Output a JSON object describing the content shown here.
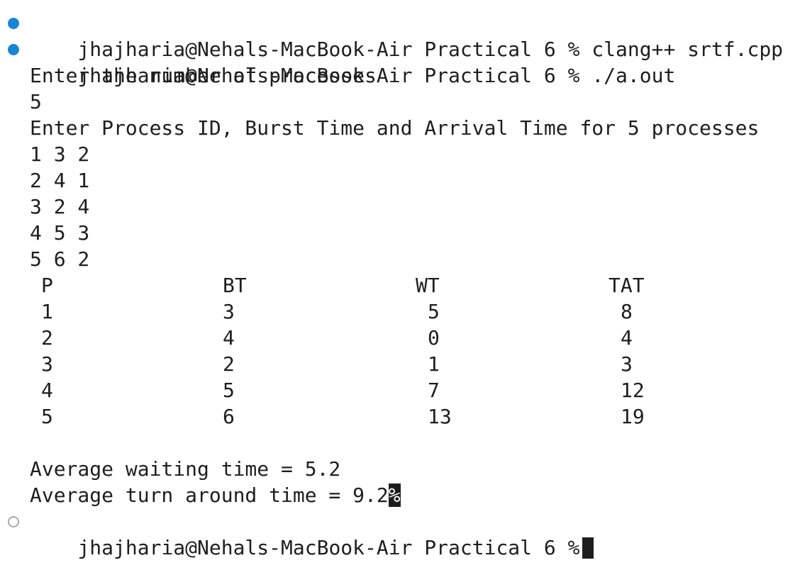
{
  "commands": [
    {
      "prompt": "jhajharia@Nehals-MacBook-Air Practical 6 %",
      "command": "clang++ srtf.cpp",
      "status": "success"
    },
    {
      "prompt": "jhajharia@Nehals-MacBook-Air Practical 6 %",
      "command": "./a.out",
      "status": "success"
    }
  ],
  "output": {
    "ask_count": "Enter the number of processes",
    "count": "5",
    "ask_details": "Enter Process ID, Burst Time and Arrival Time for 5 processes",
    "inputs": [
      "1 3 2",
      "2 4 1",
      "3 2 4",
      "4 5 3",
      "5 6 2"
    ],
    "table": {
      "headers": [
        "P",
        "BT",
        "WT",
        "TAT"
      ],
      "rows": [
        [
          "1",
          "3",
          "5",
          "8"
        ],
        [
          "2",
          "4",
          "0",
          "4"
        ],
        [
          "3",
          "2",
          "1",
          "3"
        ],
        [
          "4",
          "5",
          "7",
          "12"
        ],
        [
          "5",
          "6",
          "13",
          "19"
        ]
      ]
    },
    "avg_waiting": "Average waiting time = 5.2",
    "avg_turnaround": "Average turn around time = 9.2",
    "no_newline_marker": "%"
  },
  "current_prompt": {
    "prompt": "jhajharia@Nehals-MacBook-Air Practical 6 %",
    "status": "pending"
  },
  "colors": {
    "decoration_success": "#1a85d6",
    "decoration_pending": "#a9a9a9",
    "foreground": "#1e1e1e",
    "background": "#ffffff"
  }
}
